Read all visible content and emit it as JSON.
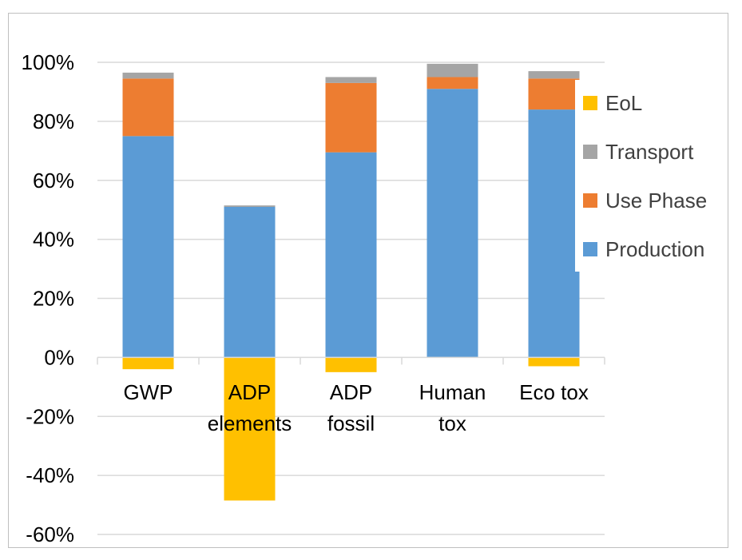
{
  "chart_data": {
    "type": "bar",
    "stacked": true,
    "categories": [
      [
        "GWP"
      ],
      [
        "ADP",
        "elements"
      ],
      [
        "ADP",
        "fossil"
      ],
      [
        "Human",
        "tox"
      ],
      [
        "Eco tox"
      ]
    ],
    "series": [
      {
        "name": "Production",
        "color": "#5b9bd5",
        "values": [
          75,
          51,
          69.5,
          91,
          84
        ]
      },
      {
        "name": "Use Phase",
        "color": "#ed7d31",
        "values": [
          19.5,
          0,
          23.5,
          4,
          10.5
        ]
      },
      {
        "name": "Transport",
        "color": "#a5a5a5",
        "values": [
          2,
          0.5,
          2,
          4.5,
          2.5
        ]
      },
      {
        "name": "EoL",
        "color": "#ffc000",
        "values": [
          -4,
          -48.5,
          -5,
          0,
          -3
        ]
      }
    ],
    "legend_order": [
      "EoL",
      "Transport",
      "Use Phase",
      "Production"
    ],
    "legend_position": "right",
    "ylim": [
      -60,
      100
    ],
    "yticks": [
      100,
      80,
      60,
      40,
      20,
      0,
      -20,
      -40,
      -60
    ],
    "ytick_labels": [
      "100%",
      "80%",
      "60%",
      "40%",
      "20%",
      "0%",
      "-20%",
      "-40%",
      "-60%"
    ],
    "grid": true
  }
}
